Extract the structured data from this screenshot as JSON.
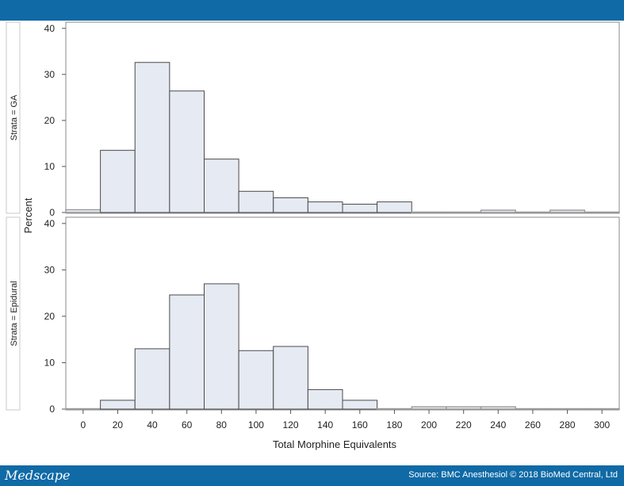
{
  "footer": {
    "brand": "Medscape",
    "source": "Source: BMC Anesthesiol © 2018 BioMed Central, Ltd"
  },
  "chart_data": {
    "type": "bar",
    "title": "",
    "xlabel": "Total Morphine Equivalents",
    "ylabel": "Percent",
    "xlim": [
      -10,
      310
    ],
    "ylim": [
      0,
      41
    ],
    "bin_width": 20,
    "x_ticks": [
      0,
      20,
      40,
      60,
      80,
      100,
      120,
      140,
      160,
      180,
      200,
      220,
      240,
      260,
      280,
      300
    ],
    "y_ticks": [
      0,
      10,
      20,
      30,
      40
    ],
    "bin_centers": [
      0,
      20,
      40,
      60,
      80,
      100,
      120,
      140,
      160,
      180,
      200,
      220,
      240,
      260,
      280,
      300
    ],
    "panels": [
      {
        "strata_label": "Strata = GA",
        "values": [
          0.6,
          13.5,
          32.6,
          26.4,
          11.6,
          4.6,
          3.2,
          2.3,
          1.8,
          2.3,
          0,
          0,
          0.5,
          0,
          0.5,
          0
        ]
      },
      {
        "strata_label": "Strata = Epidural",
        "values": [
          0,
          1.9,
          13.0,
          24.6,
          27.0,
          12.6,
          13.5,
          4.2,
          1.9,
          0,
          0.5,
          0.5,
          0.5,
          0,
          0,
          0
        ]
      }
    ],
    "colors": {
      "bar_fill": "#e6eaf3",
      "bar_stroke": "#4a4a4a",
      "frame": "#8a8a8a",
      "bar_stroke_thin": "#9a9a9a"
    }
  }
}
